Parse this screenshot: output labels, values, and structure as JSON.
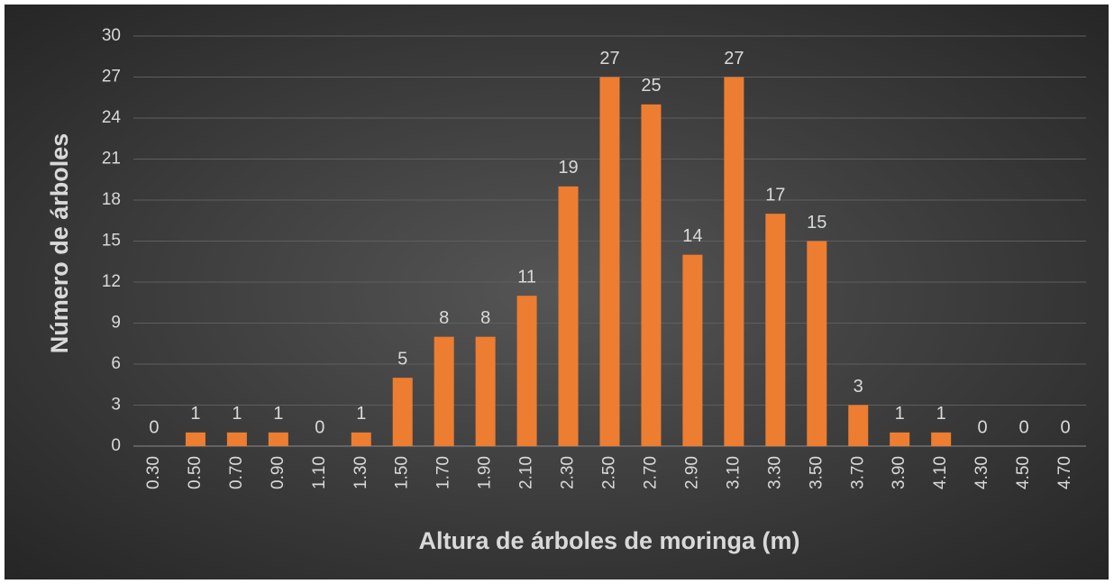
{
  "chart_data": {
    "type": "bar",
    "x_label": "Altura de árboles de moringa (m)",
    "y_label": "Número de árboles",
    "categories": [
      "0.30",
      "0.50",
      "0.70",
      "0.90",
      "1.10",
      "1.30",
      "1.50",
      "1.70",
      "1.90",
      "2.10",
      "2.30",
      "2.50",
      "2.70",
      "2.90",
      "3.10",
      "3.30",
      "3.50",
      "3.70",
      "3.90",
      "4.10",
      "4.30",
      "4.50",
      "4.70"
    ],
    "values": [
      0,
      1,
      1,
      1,
      0,
      1,
      5,
      8,
      8,
      11,
      19,
      27,
      25,
      14,
      27,
      17,
      15,
      3,
      1,
      1,
      0,
      0,
      0
    ],
    "color": "#ed7d31",
    "ylim": [
      0,
      30
    ],
    "yticks": [
      0,
      3,
      6,
      9,
      12,
      15,
      18,
      21,
      24,
      27,
      30
    ],
    "grid": true
  }
}
